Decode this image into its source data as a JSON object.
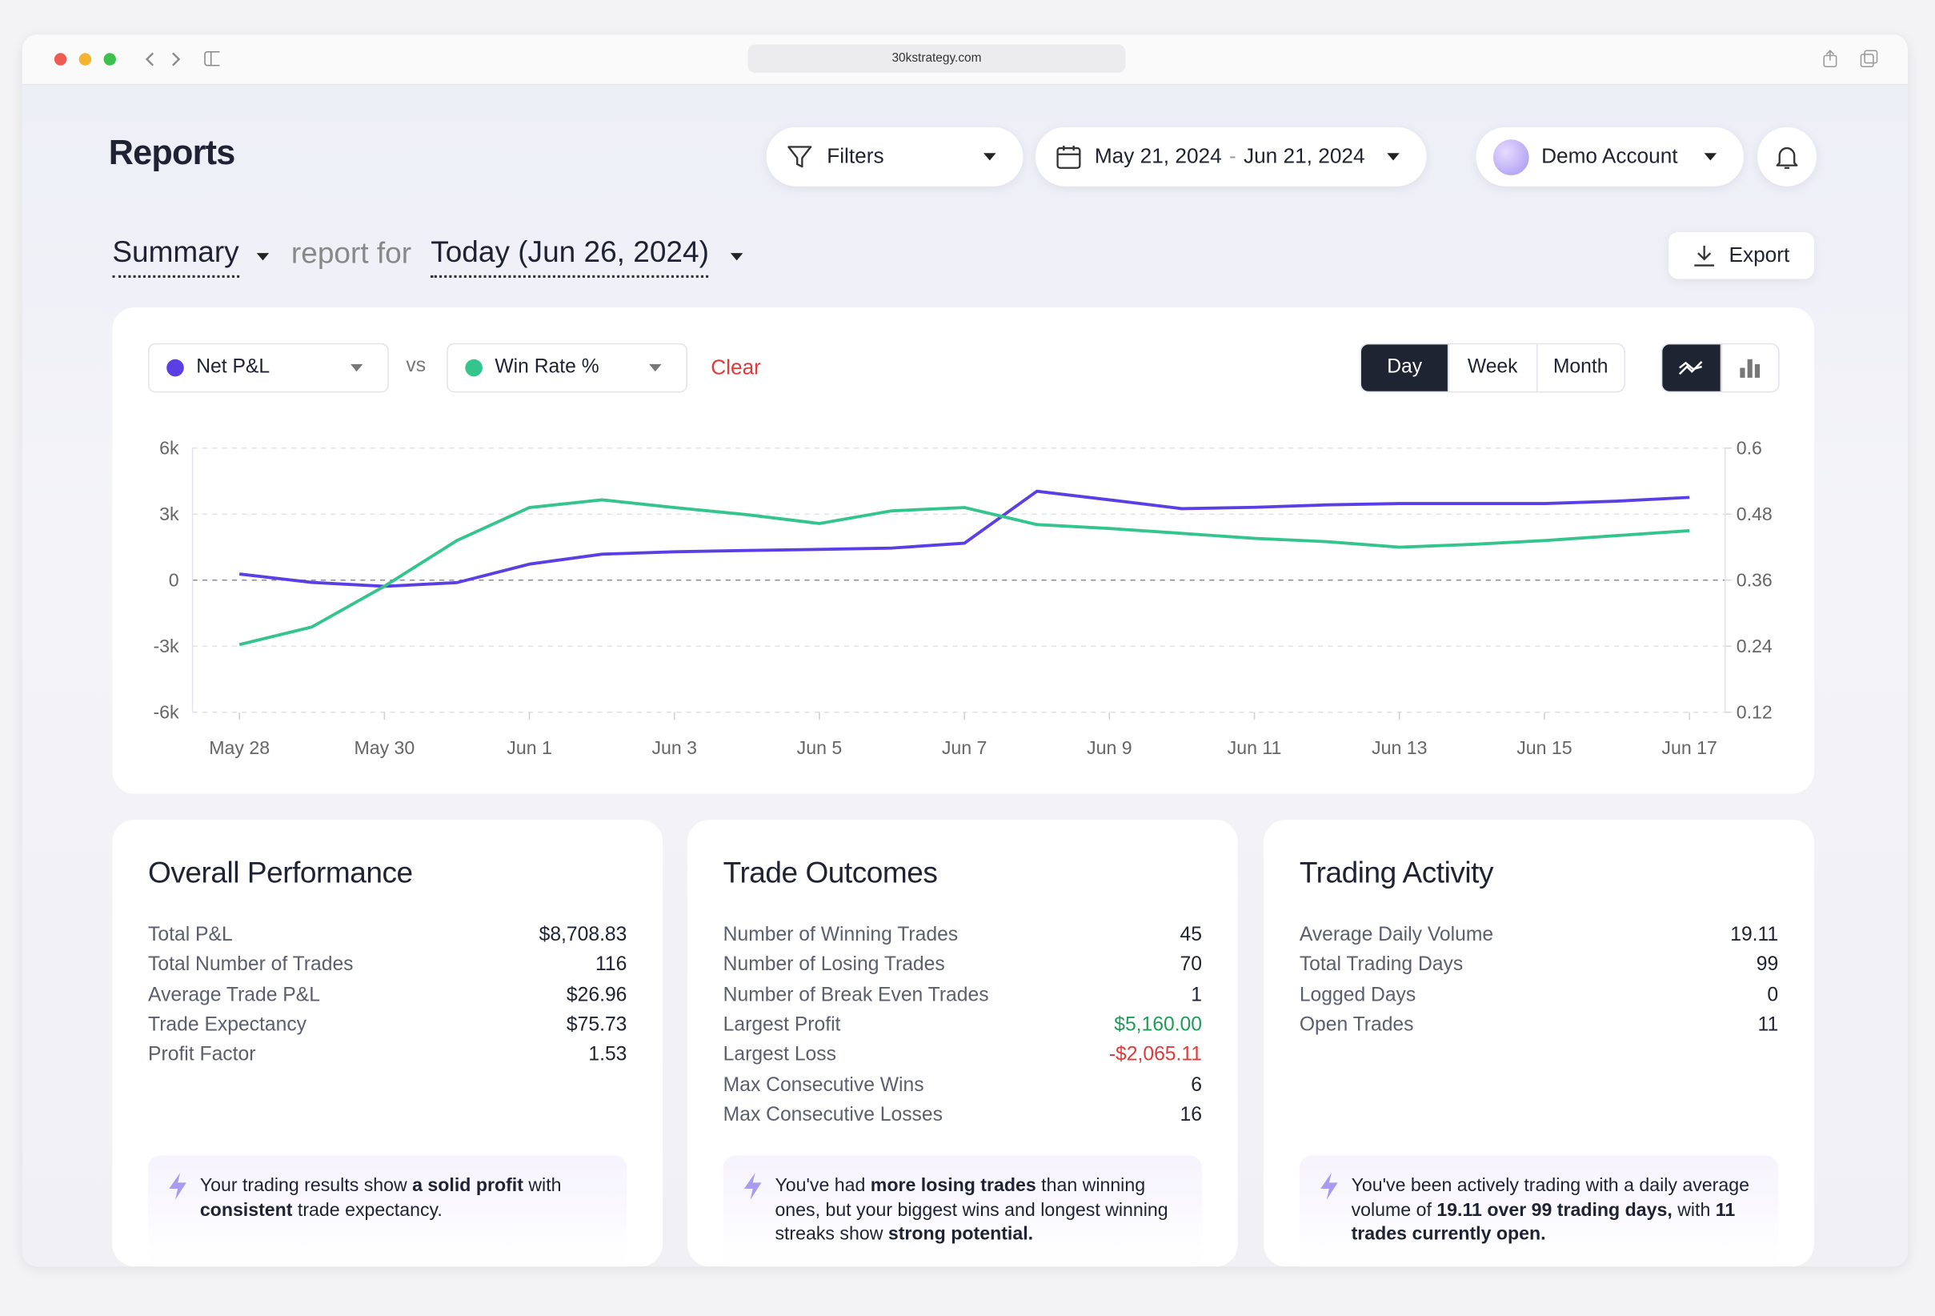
{
  "browser": {
    "url": "30kstrategy.com"
  },
  "header": {
    "title": "Reports",
    "filters": "Filters",
    "date_range": {
      "start": "May 21, 2024",
      "separator": "-",
      "end": "Jun 21, 2024"
    },
    "account": "Demo Account"
  },
  "report_bar": {
    "report": "Summary",
    "connector": "report for",
    "period": "Today (Jun 26, 2024)",
    "export": "Export"
  },
  "chart_controls": {
    "vs": "vs",
    "clear": "Clear",
    "periods": [
      "Day",
      "Week",
      "Month"
    ],
    "active_period": 0
  },
  "chart_data": {
    "type": "line",
    "categories": [
      "May 28",
      null,
      "May 30",
      null,
      "Jun 1",
      null,
      "Jun 3",
      null,
      "Jun 5",
      null,
      "Jun 7",
      null,
      "Jun 9",
      null,
      "Jun 11",
      null,
      "Jun 13",
      null,
      "Jun 15",
      null,
      "Jun 17"
    ],
    "series": [
      {
        "name": "Net P&L",
        "color": "#5b3fe4",
        "values": [
          280,
          -100,
          -280,
          -110,
          730,
          1180,
          1290,
          1350,
          1400,
          1460,
          1680,
          4040,
          3650,
          3250,
          3310,
          3420,
          3480,
          3480,
          3480,
          3590,
          3760
        ]
      },
      {
        "name": "Win Rate %",
        "color": "#34c48e",
        "axis": "y2",
        "values": [
          0.243,
          0.275,
          0.349,
          0.432,
          0.492,
          0.506,
          0.492,
          0.479,
          0.463,
          0.486,
          0.492,
          0.461,
          0.454,
          0.445,
          0.436,
          0.43,
          0.42,
          0.425,
          0.432,
          0.441,
          0.45
        ]
      }
    ],
    "ylim": [
      -6000,
      6000
    ],
    "yticks": [
      {
        "value": -6000,
        "label": "-6k"
      },
      {
        "value": -3000,
        "label": "-3k"
      },
      0,
      {
        "value": 3000,
        "label": "3k"
      },
      {
        "value": 6000,
        "label": "6k"
      }
    ],
    "y2lim": [
      0.12,
      0.6
    ],
    "y2ticks": [
      0.12,
      0.24,
      0.36,
      0.48,
      0.6
    ],
    "grid": true
  },
  "cards": [
    {
      "title": "Overall Performance",
      "rows": [
        {
          "label": "Total P&L",
          "value": "$8,708.83"
        },
        {
          "label": "Total Number of Trades",
          "value": "116"
        },
        {
          "label": "Average Trade P&L",
          "value": "$26.96"
        },
        {
          "label": "Trade Expectancy",
          "value": "$75.73"
        },
        {
          "label": "Profit Factor",
          "value": "1.53"
        }
      ],
      "insight": [
        {
          "text": "Your trading results show "
        },
        {
          "text": "a solid profit",
          "bold": true
        },
        {
          "text": " with "
        },
        {
          "text": "consistent",
          "bold": true
        },
        {
          "text": " trade expectancy."
        }
      ]
    },
    {
      "title": "Trade Outcomes",
      "rows": [
        {
          "label": "Number of Winning Trades",
          "value": "45"
        },
        {
          "label": "Number of Losing Trades",
          "value": "70"
        },
        {
          "label": "Number of Break Even Trades",
          "value": "1"
        },
        {
          "label": "Largest Profit",
          "value": "$5,160.00",
          "color": "#1f9d57"
        },
        {
          "label": "Largest Loss",
          "value": "-$2,065.11",
          "color": "#e03a3a"
        },
        {
          "label": "Max Consecutive Wins",
          "value": "6"
        },
        {
          "label": "Max Consecutive Losses",
          "value": "16"
        }
      ],
      "insight": [
        {
          "text": "You've had "
        },
        {
          "text": "more losing trades",
          "bold": true
        },
        {
          "text": " than winning ones, but your biggest wins and longest winning streaks show "
        },
        {
          "text": "strong potential.",
          "bold": true
        }
      ]
    },
    {
      "title": "Trading Activity",
      "rows": [
        {
          "label": "Average Daily Volume",
          "value": "19.11"
        },
        {
          "label": "Total Trading Days",
          "value": "99"
        },
        {
          "label": "Logged Days",
          "value": "0"
        },
        {
          "label": "Open Trades",
          "value": "11"
        }
      ],
      "insight": [
        {
          "text": "You've been actively trading with a daily average volume of "
        },
        {
          "text": "19.11 over 99 trading days,",
          "bold": true
        },
        {
          "text": " with "
        },
        {
          "text": "11 trades currently open.",
          "bold": true
        }
      ]
    }
  ]
}
